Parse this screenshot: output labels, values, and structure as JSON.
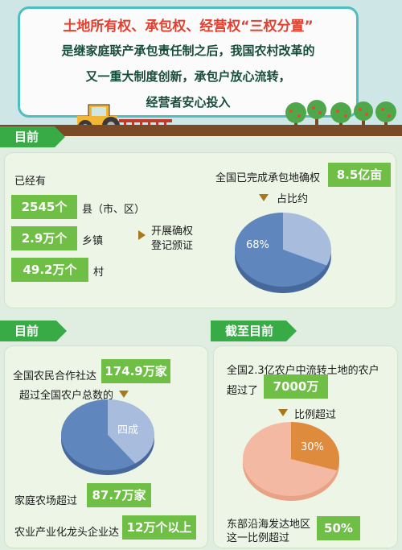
{
  "header": {
    "title": "土地所有权、承包权、经营权“三权分置”",
    "line2": "是继家庭联产承包责任制之后，我国农村改革的",
    "line3": "又一重大制度创新，承包户放心流转，",
    "line4": "经营者安心投入"
  },
  "section1": {
    "tab": "目前",
    "already": "已经有",
    "rows": [
      {
        "value": "2545个",
        "unit": "县（市、区）"
      },
      {
        "value": "2.9万个",
        "unit": "乡镇"
      },
      {
        "value": "49.2万个",
        "unit": "村"
      }
    ],
    "action_line1": "开展确权",
    "action_line2": "登记颁证",
    "completed_label": "全国已完成承包地确权",
    "completed_value": "8.5亿亩",
    "share_label": "占比约",
    "pie_percent": "68%",
    "pie_fraction": 0.68
  },
  "section2": {
    "tab": "目前",
    "coop_label": "全国农民合作社达",
    "coop_value": "174.9万家",
    "share_label": "超过全国农户总数的",
    "pie_label": "四成",
    "pie_fraction": 0.4,
    "farm_label": "家庭农场超过",
    "farm_value": "87.7万家",
    "dragon_label": "农业产业化龙头企业达",
    "dragon_value": "12万个以上"
  },
  "section3": {
    "tab": "截至目前",
    "line1": "全国2.3亿农户中流转土地的农户",
    "line2": "超过了",
    "value": "7000万",
    "ratio_label": "比例超过",
    "pie_label": "30%",
    "pie_fraction": 0.3,
    "east_line1": "东部沿海发达地区",
    "east_line2": "这一比例超过",
    "east_value": "50%"
  },
  "colors": {
    "accent_green": "#38aa46",
    "box_green": "#6fbe45",
    "title_red": "#e23f2e",
    "pie_blue_dark": "#5f86bd",
    "pie_blue_light": "#a8bcdd",
    "pie_peach": "#f4b9a2",
    "pie_orange": "#df8b3d"
  }
}
